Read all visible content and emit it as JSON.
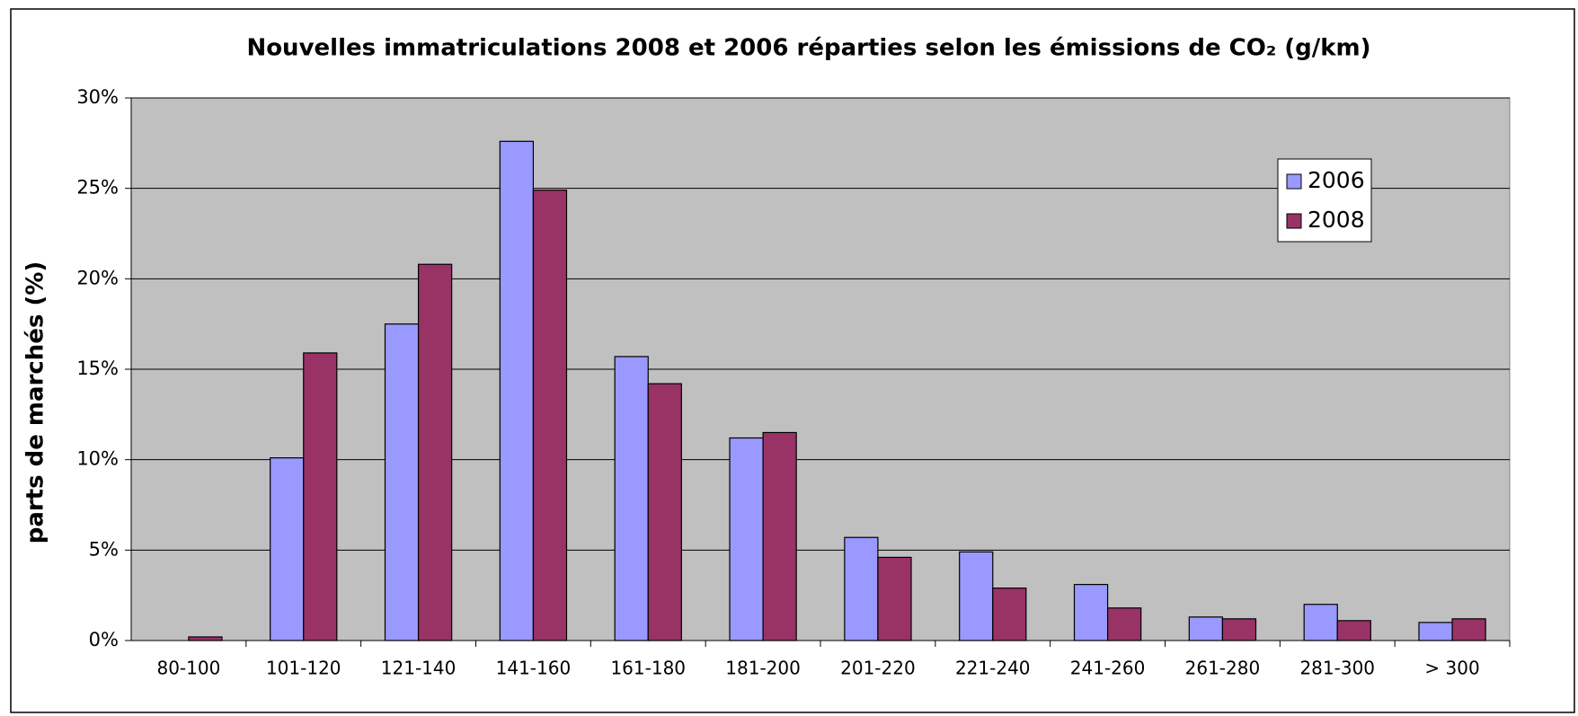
{
  "chart_data": {
    "type": "bar",
    "title": "Nouvelles immatriculations 2008 et 2006 réparties selon les émissions de CO₂ (g/km)",
    "ylabel": "parts de marchés (%)",
    "categories": [
      "80-100",
      "101-120",
      "121-140",
      "141-160",
      "161-180",
      "181-200",
      "201-220",
      "221-240",
      "241-260",
      "261-280",
      "281-300",
      "> 300"
    ],
    "series": [
      {
        "name": "2006",
        "color": "#9999ff",
        "values": [
          0,
          10.1,
          17.5,
          27.6,
          15.7,
          11.2,
          5.7,
          4.9,
          3.1,
          1.3,
          2.0,
          1.0
        ]
      },
      {
        "name": "2008",
        "color": "#993366",
        "values": [
          0.2,
          15.9,
          20.8,
          24.9,
          14.2,
          11.5,
          4.6,
          2.9,
          1.8,
          1.2,
          1.1,
          1.2
        ]
      }
    ],
    "ylim": [
      0,
      30
    ],
    "yticks": [
      {
        "value": 0,
        "label": "0%"
      },
      {
        "value": 5,
        "label": "5%"
      },
      {
        "value": 10,
        "label": "10%"
      },
      {
        "value": 15,
        "label": "15%"
      },
      {
        "value": 20,
        "label": "20%"
      },
      {
        "value": 25,
        "label": "25%"
      },
      {
        "value": 30,
        "label": "30%"
      }
    ],
    "grid": true,
    "legend": "upper right"
  }
}
